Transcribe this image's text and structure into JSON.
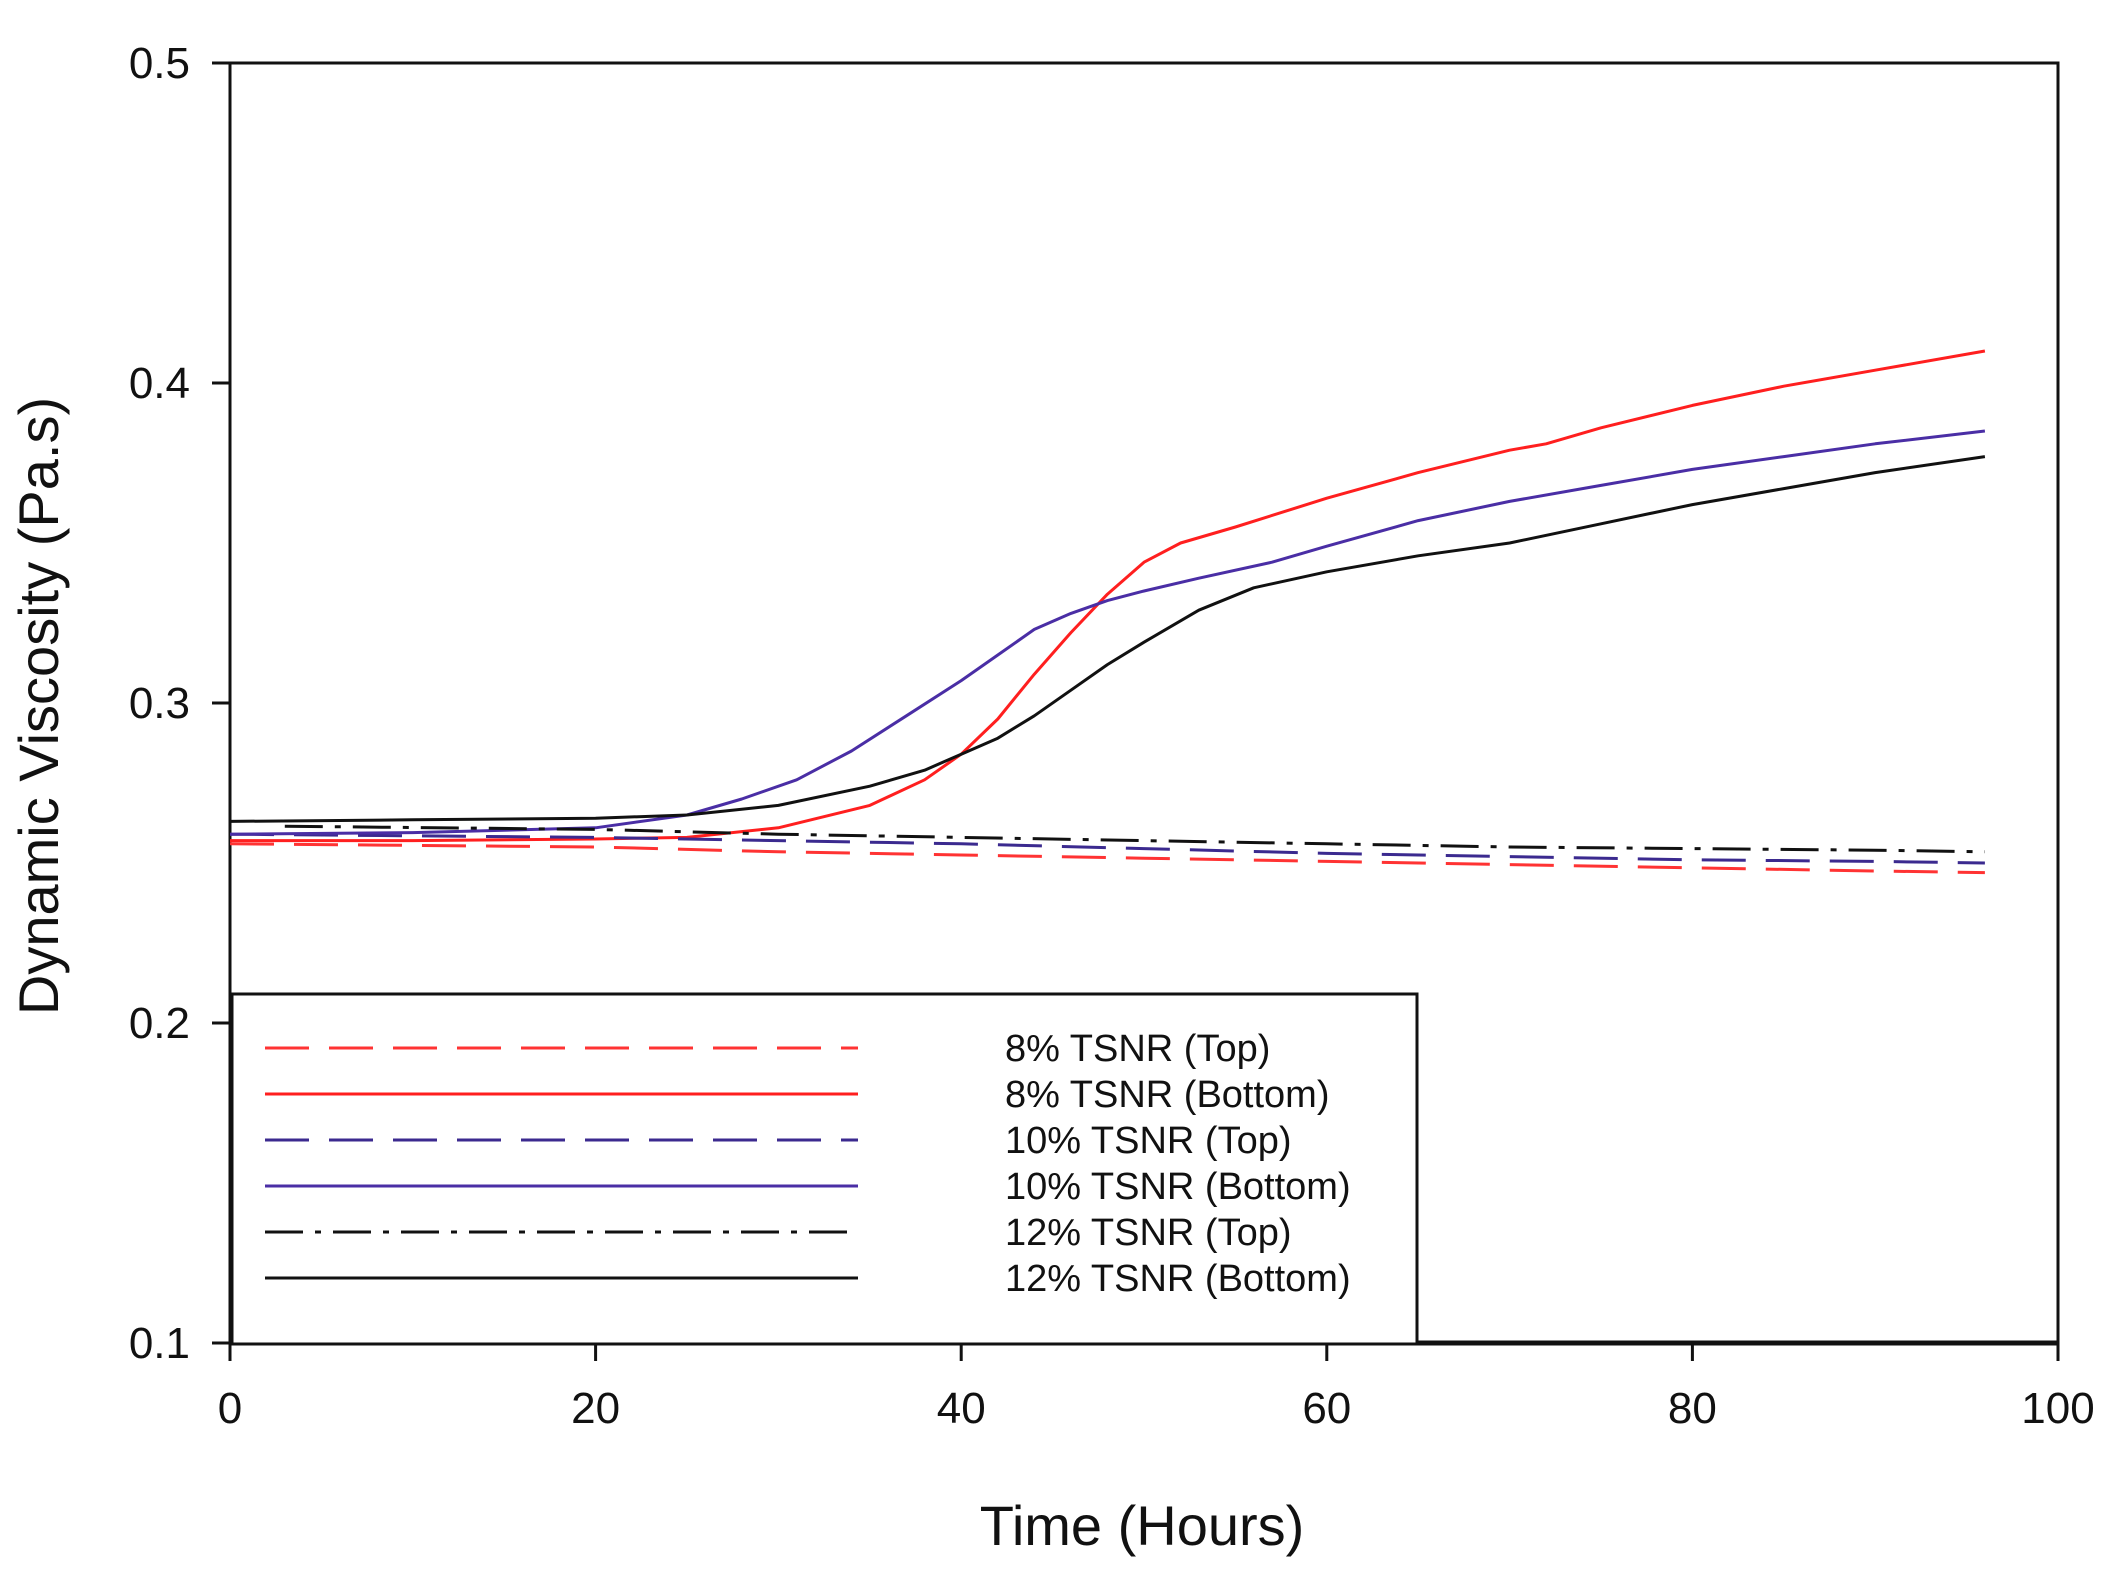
{
  "chart_data": {
    "type": "line",
    "title": "",
    "xlabel": "Time (Hours)",
    "ylabel": "Dynamic Viscosity (Pa.s)",
    "xlim": [
      0,
      100
    ],
    "ylim": [
      0.1,
      0.5
    ],
    "xticks": [
      0,
      20,
      40,
      60,
      80,
      100
    ],
    "xtick_labels": [
      "0",
      "20",
      "40",
      "60",
      "80",
      "100"
    ],
    "yticks": [
      0.1,
      0.2,
      0.3,
      0.4,
      0.5
    ],
    "ytick_labels": [
      "0.1",
      "0.2",
      "0.3",
      "0.4",
      "0.5"
    ],
    "grid": false,
    "legend_position": "bottom-left",
    "series": [
      {
        "name": "8% TSNR (Top)",
        "color": "#ff3333",
        "style": "dashed",
        "x": [
          0,
          10,
          20,
          30,
          40,
          50,
          60,
          70,
          80,
          90,
          96
        ],
        "y": [
          0.256,
          0.2555,
          0.255,
          0.2535,
          0.2525,
          0.2515,
          0.2505,
          0.2495,
          0.2485,
          0.2475,
          0.247
        ]
      },
      {
        "name": "8% TSNR (Bottom)",
        "color": "#ff1f1f",
        "style": "solid",
        "x": [
          0,
          10,
          20,
          25,
          30,
          35,
          38,
          40,
          42,
          44,
          46,
          48,
          50,
          52,
          55,
          60,
          65,
          70,
          72,
          75,
          80,
          85,
          90,
          96
        ],
        "y": [
          0.257,
          0.257,
          0.2575,
          0.258,
          0.261,
          0.268,
          0.276,
          0.284,
          0.295,
          0.309,
          0.322,
          0.334,
          0.344,
          0.35,
          0.355,
          0.364,
          0.372,
          0.379,
          0.381,
          0.386,
          0.393,
          0.399,
          0.404,
          0.41
        ]
      },
      {
        "name": "10% TSNR (Top)",
        "color": "#3b2a8f",
        "style": "dashed",
        "x": [
          0,
          10,
          20,
          30,
          40,
          50,
          60,
          70,
          80,
          90,
          96
        ],
        "y": [
          0.259,
          0.2585,
          0.258,
          0.257,
          0.256,
          0.2545,
          0.253,
          0.252,
          0.251,
          0.2505,
          0.25
        ]
      },
      {
        "name": "10% TSNR (Bottom)",
        "color": "#4a2ea5",
        "style": "solid",
        "x": [
          0,
          10,
          20,
          25,
          28,
          31,
          34,
          37,
          40,
          42,
          44,
          46,
          48,
          50,
          53,
          57,
          60,
          65,
          70,
          75,
          80,
          85,
          90,
          96
        ],
        "y": [
          0.259,
          0.2595,
          0.261,
          0.265,
          0.27,
          0.276,
          0.285,
          0.296,
          0.307,
          0.315,
          0.323,
          0.328,
          0.332,
          0.335,
          0.339,
          0.344,
          0.349,
          0.357,
          0.363,
          0.368,
          0.373,
          0.377,
          0.381,
          0.385
        ]
      },
      {
        "name": "12% TSNR (Top)",
        "color": "#111111",
        "style": "dashdot",
        "x": [
          3,
          20,
          30,
          40,
          50,
          60,
          70,
          80,
          90,
          96
        ],
        "y": [
          0.2615,
          0.2605,
          0.259,
          0.258,
          0.257,
          0.256,
          0.255,
          0.2545,
          0.254,
          0.2535
        ]
      },
      {
        "name": "12% TSNR (Bottom)",
        "color": "#111111",
        "style": "solid",
        "x": [
          0,
          10,
          20,
          25,
          30,
          35,
          38,
          40,
          42,
          44,
          46,
          48,
          50,
          53,
          56,
          60,
          65,
          70,
          75,
          80,
          85,
          90,
          96
        ],
        "y": [
          0.263,
          0.2635,
          0.264,
          0.265,
          0.268,
          0.274,
          0.279,
          0.284,
          0.289,
          0.296,
          0.304,
          0.312,
          0.319,
          0.329,
          0.336,
          0.341,
          0.346,
          0.35,
          0.356,
          0.362,
          0.367,
          0.372,
          0.377
        ]
      }
    ]
  }
}
